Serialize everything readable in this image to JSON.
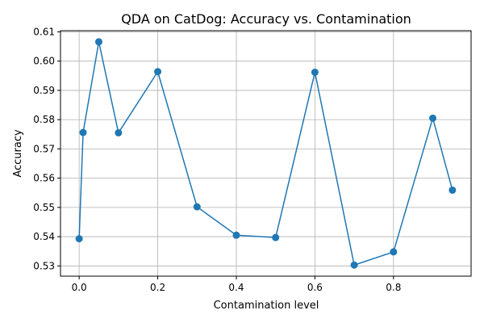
{
  "chart_data": {
    "type": "line",
    "title": "QDA on CatDog: Accuracy vs. Contamination",
    "xlabel": "Contamination level",
    "ylabel": "Accuracy",
    "xlim": [
      -0.0475,
      0.9975
    ],
    "ylim": [
      0.5265,
      0.6104
    ],
    "grid": true,
    "x_ticks": [
      "0.0",
      "0.2",
      "0.4",
      "0.6",
      "0.8"
    ],
    "y_ticks": [
      "0.53",
      "0.54",
      "0.55",
      "0.56",
      "0.57",
      "0.58",
      "0.59",
      "0.60",
      "0.61"
    ],
    "series": [
      {
        "color": "#1f77b4",
        "marker": "circle",
        "x": [
          0.0,
          0.01,
          0.05,
          0.1,
          0.2,
          0.3,
          0.4,
          0.5,
          0.6,
          0.7,
          0.8,
          0.9,
          0.95
        ],
        "y": [
          0.5393,
          0.5756,
          0.6066,
          0.5755,
          0.5964,
          0.5502,
          0.5405,
          0.5397,
          0.5962,
          0.5303,
          0.5348,
          0.5805,
          0.5559
        ]
      }
    ]
  }
}
